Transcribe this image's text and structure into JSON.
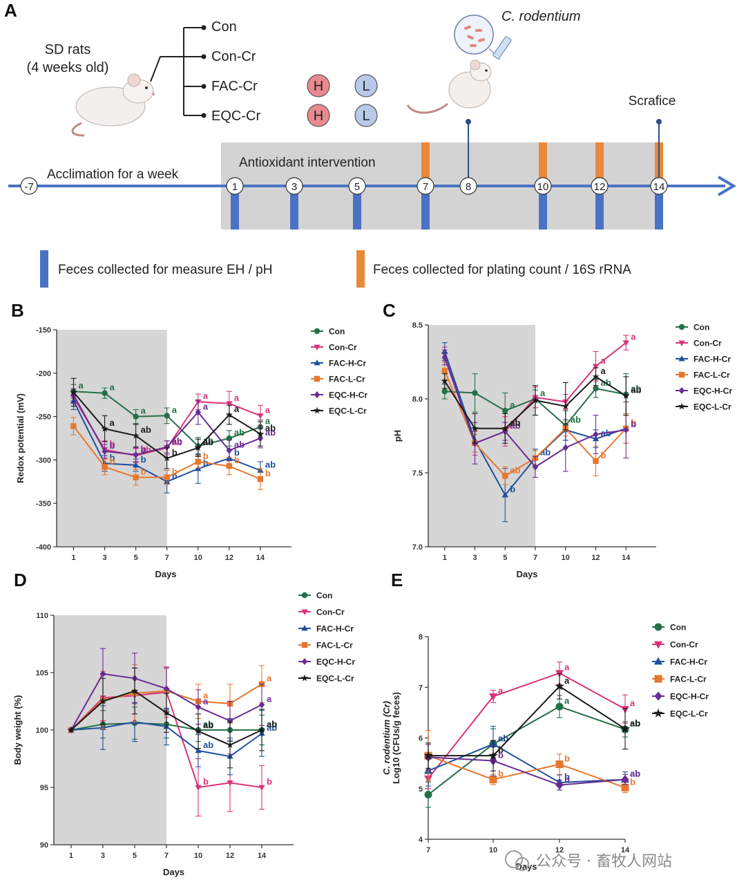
{
  "panel_a": {
    "label": "A",
    "subjects": "SD rats",
    "subjects_age": "(4 weeks old)",
    "groups": [
      "Con",
      "Con-Cr",
      "FAC-Cr",
      "EQC-Cr"
    ],
    "dose_high": "H",
    "dose_low": "L",
    "pathogen": "C. rodentium",
    "acclimation": "Acclimation for a week",
    "intervention": "Antioxidant intervention",
    "sacrifice": "Scrafice",
    "days": [
      "-7",
      "1",
      "3",
      "5",
      "7",
      "8",
      "10",
      "12",
      "14"
    ],
    "legend_blue": "Feces collected for measure EH / pH",
    "legend_orange": "Feces collected for plating count / 16S rRNA",
    "colors": {
      "blue_bar": "#4a72c4",
      "orange_bar": "#e8893a",
      "h_circle": "#e88a8f",
      "l_circle": "#b8c9ea",
      "shade": "#d3d3d3"
    }
  },
  "watermark": "公众号 · 畜牧人网站",
  "series_colors": {
    "Con": "#237047",
    "Con-Cr": "#d8337a",
    "FAC-H-Cr": "#1f4f9c",
    "FAC-L-Cr": "#e6772e",
    "EQC-H-Cr": "#6a2c93",
    "EQC-L-Cr": "#1a1a1a"
  },
  "chart_data": [
    {
      "panel": "B",
      "type": "line",
      "xlabel": "Days",
      "ylabel": "Redox potential (mV)",
      "x": [
        1,
        3,
        5,
        7,
        10,
        12,
        14
      ],
      "ylim": [
        -400,
        -150
      ],
      "yticks": [
        -150,
        -200,
        -250,
        -300,
        -350,
        -400
      ],
      "shaded_until": 7,
      "legend_position": "top-right",
      "series": [
        {
          "name": "Con",
          "marker": "circle",
          "values": [
            -221,
            -223,
            -250,
            -249,
            -284,
            -275,
            -262
          ],
          "err": [
            8,
            6,
            8,
            9,
            10,
            9,
            8
          ],
          "labels": [
            "a",
            "a",
            "a",
            "a",
            "ab",
            "ab",
            "a"
          ]
        },
        {
          "name": "Con-Cr",
          "marker": "tri-down",
          "values": [
            -228,
            -288,
            -295,
            -286,
            -233,
            -235,
            -249
          ],
          "err": [
            7,
            10,
            8,
            8,
            9,
            14,
            12
          ],
          "labels": [
            "",
            "b",
            "ab",
            "ab",
            "a",
            "a",
            "a"
          ]
        },
        {
          "name": "FAC-H-Cr",
          "marker": "tri-up",
          "values": [
            -232,
            -304,
            -306,
            -325,
            -310,
            -298,
            -312
          ],
          "err": [
            10,
            9,
            7,
            13,
            17,
            10,
            10
          ],
          "labels": [
            "",
            "b",
            "b",
            "b",
            "b",
            "b",
            "ab"
          ]
        },
        {
          "name": "FAC-L-Cr",
          "marker": "square",
          "values": [
            -261,
            -308,
            -320,
            -320,
            -302,
            -307,
            -322
          ],
          "err": [
            10,
            9,
            9,
            8,
            7,
            10,
            12
          ],
          "labels": [
            "",
            "b",
            "b",
            "b",
            "b",
            "b",
            "b"
          ]
        },
        {
          "name": "EQC-H-Cr",
          "marker": "diamond",
          "values": [
            -225,
            -290,
            -294,
            -285,
            -245,
            -289,
            -275
          ],
          "err": [
            7,
            8,
            8,
            7,
            14,
            12,
            11
          ],
          "labels": [
            "",
            "b",
            "b",
            "ab",
            "a",
            "ab",
            "ab"
          ]
        },
        {
          "name": "EQC-L-Cr",
          "marker": "star",
          "values": [
            -222,
            -264,
            -272,
            -298,
            -286,
            -248,
            -270
          ],
          "err": [
            16,
            15,
            13,
            12,
            10,
            11,
            14
          ],
          "labels": [
            "",
            "a",
            "ab",
            "b",
            "ab",
            "a",
            "ab"
          ]
        }
      ]
    },
    {
      "panel": "C",
      "type": "line",
      "xlabel": "Days",
      "ylabel": "pH",
      "x": [
        1,
        3,
        5,
        7,
        10,
        12,
        14
      ],
      "ylim": [
        7.0,
        8.5
      ],
      "yticks": [
        8.5,
        8.0,
        7.5,
        7.0
      ],
      "shaded_until": 7,
      "legend_position": "top-right",
      "series": [
        {
          "name": "Con",
          "marker": "circle",
          "values": [
            8.05,
            8.04,
            7.92,
            8.0,
            7.82,
            8.07,
            8.03
          ],
          "err": [
            0.05,
            0.13,
            0.12,
            0.06,
            0.1,
            0.06,
            0.14
          ],
          "labels": [
            "",
            "",
            "a",
            "a",
            "ab",
            "ab",
            "ab"
          ]
        },
        {
          "name": "Con-Cr",
          "marker": "tri-down",
          "values": [
            8.3,
            7.7,
            7.78,
            8.01,
            7.98,
            8.22,
            8.38
          ],
          "err": [
            0.05,
            0.08,
            0.1,
            0.07,
            0.05,
            0.1,
            0.05
          ],
          "labels": [
            "",
            "",
            "",
            "",
            "",
            "a",
            "a"
          ]
        },
        {
          "name": "FAC-H-Cr",
          "marker": "tri-up",
          "values": [
            8.32,
            7.72,
            7.35,
            7.6,
            7.79,
            7.73,
            7.8
          ],
          "err": [
            0.06,
            0.08,
            0.18,
            0.06,
            0.07,
            0.06,
            0.1
          ],
          "labels": [
            "",
            "",
            "b",
            "ab",
            "",
            "ab",
            "b"
          ]
        },
        {
          "name": "FAC-L-Cr",
          "marker": "square",
          "values": [
            8.19,
            7.7,
            7.48,
            7.6,
            7.8,
            7.58,
            7.8
          ],
          "err": [
            0.06,
            0.06,
            0.06,
            0.05,
            0.05,
            0.1,
            0.1
          ],
          "labels": [
            "",
            "",
            "ab",
            "",
            "",
            "b",
            "b"
          ]
        },
        {
          "name": "EQC-H-Cr",
          "marker": "diamond",
          "values": [
            8.28,
            7.7,
            7.78,
            7.54,
            7.67,
            7.76,
            7.79
          ],
          "err": [
            0.05,
            0.14,
            0.06,
            0.07,
            0.16,
            0.13,
            0.19
          ],
          "labels": [
            "",
            "",
            "ab",
            "",
            "",
            "",
            "b"
          ]
        },
        {
          "name": "EQC-L-Cr",
          "marker": "star",
          "values": [
            8.12,
            7.8,
            7.8,
            7.99,
            7.95,
            8.15,
            8.02
          ],
          "err": [
            0.05,
            0.1,
            0.1,
            0.1,
            0.16,
            0.06,
            0.13
          ],
          "labels": [
            "",
            "",
            "ab",
            "",
            "",
            "a",
            "ab"
          ]
        }
      ]
    },
    {
      "panel": "D",
      "type": "line",
      "xlabel": "Days",
      "ylabel": "Body weight (%)",
      "x": [
        1,
        3,
        5,
        7,
        10,
        12,
        14
      ],
      "ylim": [
        90,
        110
      ],
      "yticks": [
        110,
        105,
        100,
        95,
        90
      ],
      "shaded_until": 7,
      "legend_position": "top-right",
      "series": [
        {
          "name": "Con",
          "marker": "circle",
          "values": [
            100,
            100.5,
            100.6,
            100.5,
            100.0,
            100.0,
            100.0
          ],
          "err": [
            0,
            1.2,
            1.4,
            1.2,
            1.0,
            1.0,
            1.3
          ],
          "labels": [
            "",
            "",
            "",
            "",
            "ab",
            "",
            "ab"
          ]
        },
        {
          "name": "Con-Cr",
          "marker": "tri-down",
          "values": [
            100,
            102.8,
            103.0,
            103.3,
            95.0,
            95.4,
            95.0
          ],
          "err": [
            0,
            2.0,
            2.4,
            2.2,
            2.5,
            2.5,
            1.9
          ],
          "labels": [
            "",
            "",
            "",
            "",
            "b",
            "",
            "b"
          ]
        },
        {
          "name": "FAC-H-Cr",
          "marker": "tri-up",
          "values": [
            100,
            100.2,
            100.7,
            100.3,
            98.2,
            97.7,
            99.7
          ],
          "err": [
            0,
            1.9,
            1.7,
            1.6,
            1.4,
            1.6,
            2.0
          ],
          "labels": [
            "",
            "",
            "",
            "",
            "ab",
            "",
            "ab"
          ]
        },
        {
          "name": "FAC-L-Cr",
          "marker": "square",
          "values": [
            100,
            102.6,
            103.2,
            103.4,
            102.5,
            102.3,
            104.0
          ],
          "err": [
            0,
            2.5,
            2.5,
            2.0,
            1.5,
            1.7,
            1.6
          ],
          "labels": [
            "",
            "",
            "",
            "",
            "a",
            "",
            "a"
          ]
        },
        {
          "name": "EQC-H-Cr",
          "marker": "diamond",
          "values": [
            100,
            104.9,
            104.5,
            103.6,
            102.0,
            100.8,
            102.2
          ],
          "err": [
            0,
            2.2,
            2.2,
            1.8,
            1.5,
            1.7,
            1.8
          ],
          "labels": [
            "",
            "",
            "",
            "",
            "a",
            "",
            "a"
          ]
        },
        {
          "name": "EQC-L-Cr",
          "marker": "star",
          "values": [
            100,
            102.5,
            103.4,
            101.5,
            99.9,
            98.7,
            100.0
          ],
          "err": [
            0,
            2.0,
            2.0,
            1.7,
            1.5,
            2.0,
            1.8
          ],
          "labels": [
            "",
            "",
            "",
            "",
            "ab",
            "",
            "ab"
          ]
        }
      ]
    },
    {
      "panel": "E",
      "type": "line",
      "xlabel": "Days",
      "ylabel": "Log10 (CFUs/g feces)",
      "ylabel_top": "C. rodentium (Cr)",
      "x": [
        7,
        10,
        12,
        14
      ],
      "ylim": [
        4,
        8
      ],
      "yticks": [
        8,
        7,
        6,
        5,
        4
      ],
      "legend_position": "top-right",
      "series": [
        {
          "name": "Con",
          "marker": "circle",
          "values": [
            4.88,
            5.88,
            6.62,
            6.17
          ],
          "err": [
            0.25,
            0.3,
            0.22,
            0.15
          ],
          "labels": [
            "",
            "ab",
            "a",
            "ab"
          ]
        },
        {
          "name": "Con-Cr",
          "marker": "tri-down",
          "values": [
            5.2,
            6.82,
            7.28,
            6.57
          ],
          "err": [
            0.2,
            0.12,
            0.22,
            0.28
          ],
          "labels": [
            "",
            "a",
            "a",
            "a"
          ]
        },
        {
          "name": "FAC-H-Cr",
          "marker": "tri-up",
          "values": [
            5.35,
            5.88,
            5.12,
            5.18
          ],
          "err": [
            0.3,
            0.35,
            0.15,
            0.15
          ],
          "labels": [
            "",
            "ab",
            "b",
            "ab"
          ]
        },
        {
          "name": "FAC-L-Cr",
          "marker": "square",
          "values": [
            5.65,
            5.18,
            5.48,
            5.02
          ],
          "err": [
            0.5,
            0.1,
            0.2,
            0.1
          ],
          "labels": [
            "",
            "b",
            "b",
            "b"
          ]
        },
        {
          "name": "EQC-H-Cr",
          "marker": "diamond",
          "values": [
            5.62,
            5.55,
            5.07,
            5.18
          ],
          "err": [
            0.25,
            0.3,
            0.1,
            0.1
          ],
          "labels": [
            "",
            "b",
            "b",
            "ab"
          ]
        },
        {
          "name": "EQC-L-Cr",
          "marker": "star",
          "values": [
            5.65,
            5.65,
            7.02,
            6.18
          ],
          "err": [
            0.25,
            0.3,
            0.25,
            0.4
          ],
          "labels": [
            "",
            "b",
            "a",
            "ab"
          ]
        }
      ]
    }
  ]
}
